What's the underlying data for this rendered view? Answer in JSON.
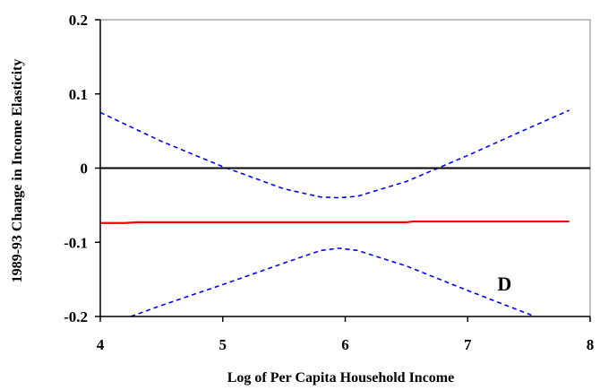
{
  "chart_data": {
    "type": "line",
    "title": "",
    "xlabel": "Log of Per Capita Household Income",
    "ylabel": "1989-93 Change in Income Elasticity",
    "xlim": [
      4,
      8
    ],
    "ylim": [
      -0.2,
      0.2
    ],
    "x_ticks": [
      4,
      5,
      6,
      7,
      8
    ],
    "y_ticks": [
      0.2,
      0.1,
      0,
      -0.1,
      -0.2
    ],
    "x_tick_labels": [
      "4",
      "5",
      "6",
      "7",
      "8"
    ],
    "y_tick_labels": [
      "0.2",
      "0.1",
      "0",
      "-0.1",
      "-0.2"
    ],
    "grid": false,
    "legend": "none",
    "annotations": [
      {
        "text": "D",
        "x": 7.3,
        "y": -0.155
      }
    ],
    "series": [
      {
        "color": "#0000ff",
        "style": "dashed",
        "x": [
          4.0,
          4.5,
          5.0,
          5.5,
          5.8,
          5.95,
          6.1,
          6.5,
          7.0,
          7.5,
          7.83
        ],
        "y": [
          0.075,
          0.036,
          0.002,
          -0.028,
          -0.039,
          -0.04,
          -0.038,
          -0.018,
          0.017,
          0.054,
          0.078
        ]
      },
      {
        "color": "#ff0000",
        "style": "solid",
        "x": [
          4.0,
          4.2,
          4.3,
          5.0,
          6.0,
          6.5,
          6.55,
          7.0,
          7.83
        ],
        "y": [
          -0.074,
          -0.074,
          -0.073,
          -0.073,
          -0.073,
          -0.073,
          -0.072,
          -0.072,
          -0.072
        ]
      },
      {
        "color": "#0000ff",
        "style": "dashed",
        "x": [
          4.25,
          4.5,
          5.0,
          5.5,
          5.8,
          5.95,
          6.1,
          6.5,
          7.0,
          7.55
        ],
        "y": [
          -0.2,
          -0.185,
          -0.157,
          -0.128,
          -0.111,
          -0.108,
          -0.111,
          -0.132,
          -0.165,
          -0.2
        ]
      }
    ]
  }
}
